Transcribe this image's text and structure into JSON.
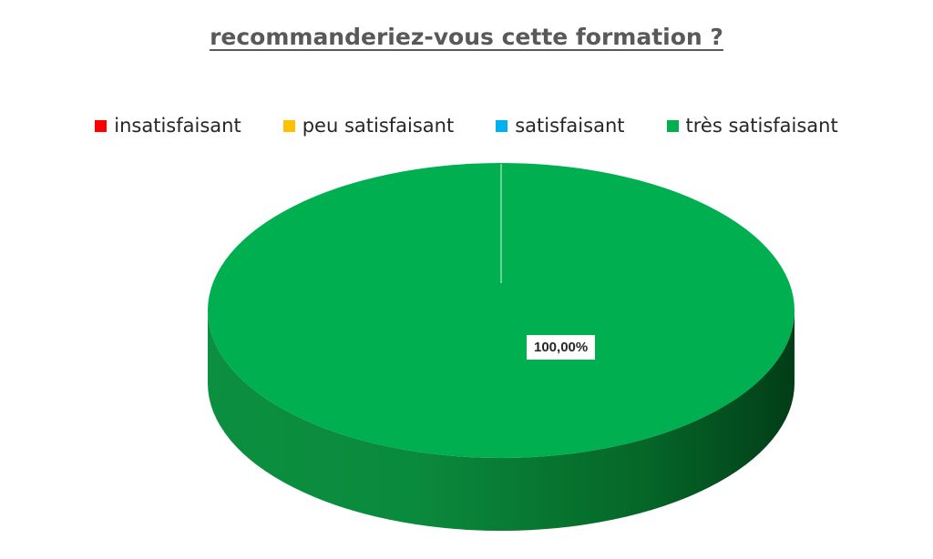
{
  "chart_data": {
    "type": "pie",
    "title": "recommanderiez-vous cette formation ?",
    "categories": [
      "insatisfaisant",
      "peu satisfaisant",
      "satisfaisant",
      "très satisfaisant"
    ],
    "values": [
      0,
      0,
      0,
      100
    ],
    "data_labels": [
      "",
      "",
      "",
      "100,00%"
    ],
    "colors": [
      "#ff0000",
      "#ffc000",
      "#00b0f0",
      "#00b050"
    ],
    "legend_placement": "top",
    "style": "3d"
  }
}
